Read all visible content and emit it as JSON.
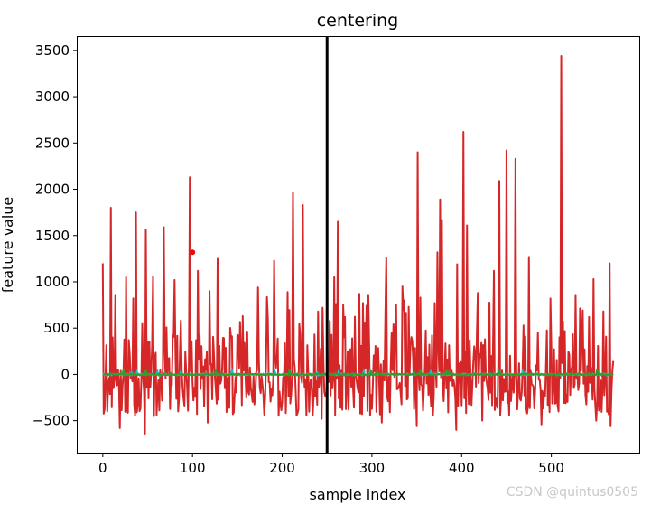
{
  "chart_data": {
    "type": "line",
    "title": "centering",
    "xlabel": "sample index",
    "ylabel": "feature value",
    "xlim": [
      -28,
      598
    ],
    "ylim": [
      -845,
      3645
    ],
    "x_ticks": [
      0,
      100,
      200,
      300,
      400,
      500
    ],
    "y_ticks": [
      -500,
      0,
      500,
      1000,
      1500,
      2000,
      2500,
      3000,
      3500
    ],
    "grid": false,
    "legend": "none",
    "vertical_line": {
      "x": 250,
      "color": "#000000"
    },
    "series": [
      {
        "color": "#d62728",
        "n_points": 570,
        "approx_range": [
          -640,
          3440
        ],
        "peaks": [
          {
            "x": 0,
            "y": 1200
          },
          {
            "x": 9,
            "y": 1800
          },
          {
            "x": 14,
            "y": 860
          },
          {
            "x": 26,
            "y": 1050
          },
          {
            "x": 37,
            "y": 1750
          },
          {
            "x": 48,
            "y": 1560
          },
          {
            "x": 56,
            "y": 1060
          },
          {
            "x": 68,
            "y": 1590
          },
          {
            "x": 80,
            "y": 1020
          },
          {
            "x": 97,
            "y": 2130
          },
          {
            "x": 106,
            "y": 1120
          },
          {
            "x": 119,
            "y": 900
          },
          {
            "x": 128,
            "y": 1250
          },
          {
            "x": 156,
            "y": 630
          },
          {
            "x": 173,
            "y": 940
          },
          {
            "x": 191,
            "y": 1230
          },
          {
            "x": 206,
            "y": 890
          },
          {
            "x": 212,
            "y": 1970
          },
          {
            "x": 223,
            "y": 1830
          },
          {
            "x": 245,
            "y": 720
          },
          {
            "x": 258,
            "y": 1050
          },
          {
            "x": 262,
            "y": 1650
          },
          {
            "x": 286,
            "y": 870
          },
          {
            "x": 296,
            "y": 860
          },
          {
            "x": 316,
            "y": 1260
          },
          {
            "x": 334,
            "y": 950
          },
          {
            "x": 341,
            "y": 730
          },
          {
            "x": 351,
            "y": 2400
          },
          {
            "x": 373,
            "y": 1320
          },
          {
            "x": 376,
            "y": 1890
          },
          {
            "x": 378,
            "y": 1670
          },
          {
            "x": 395,
            "y": 1190
          },
          {
            "x": 402,
            "y": 2620
          },
          {
            "x": 406,
            "y": 1610
          },
          {
            "x": 418,
            "y": 880
          },
          {
            "x": 436,
            "y": 1120
          },
          {
            "x": 442,
            "y": 2090
          },
          {
            "x": 450,
            "y": 2420
          },
          {
            "x": 460,
            "y": 2330
          },
          {
            "x": 475,
            "y": 1270
          },
          {
            "x": 499,
            "y": 820
          },
          {
            "x": 511,
            "y": 3440
          },
          {
            "x": 527,
            "y": 860
          },
          {
            "x": 547,
            "y": 1030
          },
          {
            "x": 565,
            "y": 1200
          }
        ],
        "troughs": [
          {
            "x": 19,
            "y": -580
          },
          {
            "x": 47,
            "y": -640
          },
          {
            "x": 117,
            "y": -520
          },
          {
            "x": 244,
            "y": -480
          },
          {
            "x": 311,
            "y": -520
          },
          {
            "x": 350,
            "y": -560
          },
          {
            "x": 394,
            "y": -600
          },
          {
            "x": 423,
            "y": -500
          },
          {
            "x": 489,
            "y": -540
          },
          {
            "x": 550,
            "y": -500
          },
          {
            "x": 566,
            "y": -560
          }
        ]
      },
      {
        "color": "#17becf",
        "n_points": 570,
        "approx_range": [
          -30,
          50
        ]
      },
      {
        "color": "#2ca02c",
        "n_points": 570,
        "approx_range": [
          -30,
          60
        ]
      }
    ],
    "markers": [
      {
        "x": 100,
        "y": 1320,
        "color": "#ff0000"
      }
    ]
  },
  "watermark": "CSDN @quintus0505"
}
